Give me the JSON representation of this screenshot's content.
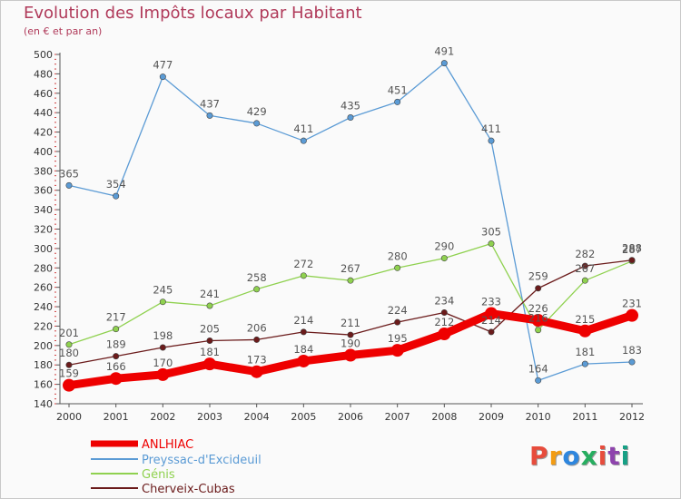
{
  "title": "Evolution des Impôts locaux par Habitant",
  "subtitle": "(en € et par an)",
  "logo": "Proxiti",
  "chart_data": {
    "type": "line",
    "title": "Evolution des Impôts locaux par Habitant",
    "subtitle": "(en € et par an)",
    "xlabel": "",
    "ylabel": "",
    "x": [
      "2000",
      "2001",
      "2002",
      "2003",
      "2004",
      "2005",
      "2006",
      "2007",
      "2008",
      "2009",
      "2010",
      "2011",
      "2012"
    ],
    "ylim": [
      140,
      500
    ],
    "ytick_step": 20,
    "grid": false,
    "legend_position": "bottom-left",
    "series": [
      {
        "name": "ANLHIAC",
        "color": "#ee0000",
        "values": [
          159,
          166,
          170,
          181,
          173,
          184,
          190,
          195,
          212,
          233,
          226,
          215,
          231
        ]
      },
      {
        "name": "Preyssac-d'Excideuil",
        "color": "#5b9bd5",
        "values": [
          365,
          354,
          477,
          437,
          429,
          411,
          435,
          451,
          491,
          411,
          164,
          181,
          183
        ]
      },
      {
        "name": "Génis",
        "color": "#8fd14f",
        "values": [
          201,
          217,
          245,
          241,
          258,
          272,
          267,
          280,
          290,
          305,
          216,
          267,
          287
        ]
      },
      {
        "name": "Cherveix-Cubas",
        "color": "#6b1b1b",
        "values": [
          180,
          189,
          198,
          205,
          206,
          214,
          211,
          224,
          234,
          214,
          259,
          282,
          288
        ]
      }
    ]
  }
}
